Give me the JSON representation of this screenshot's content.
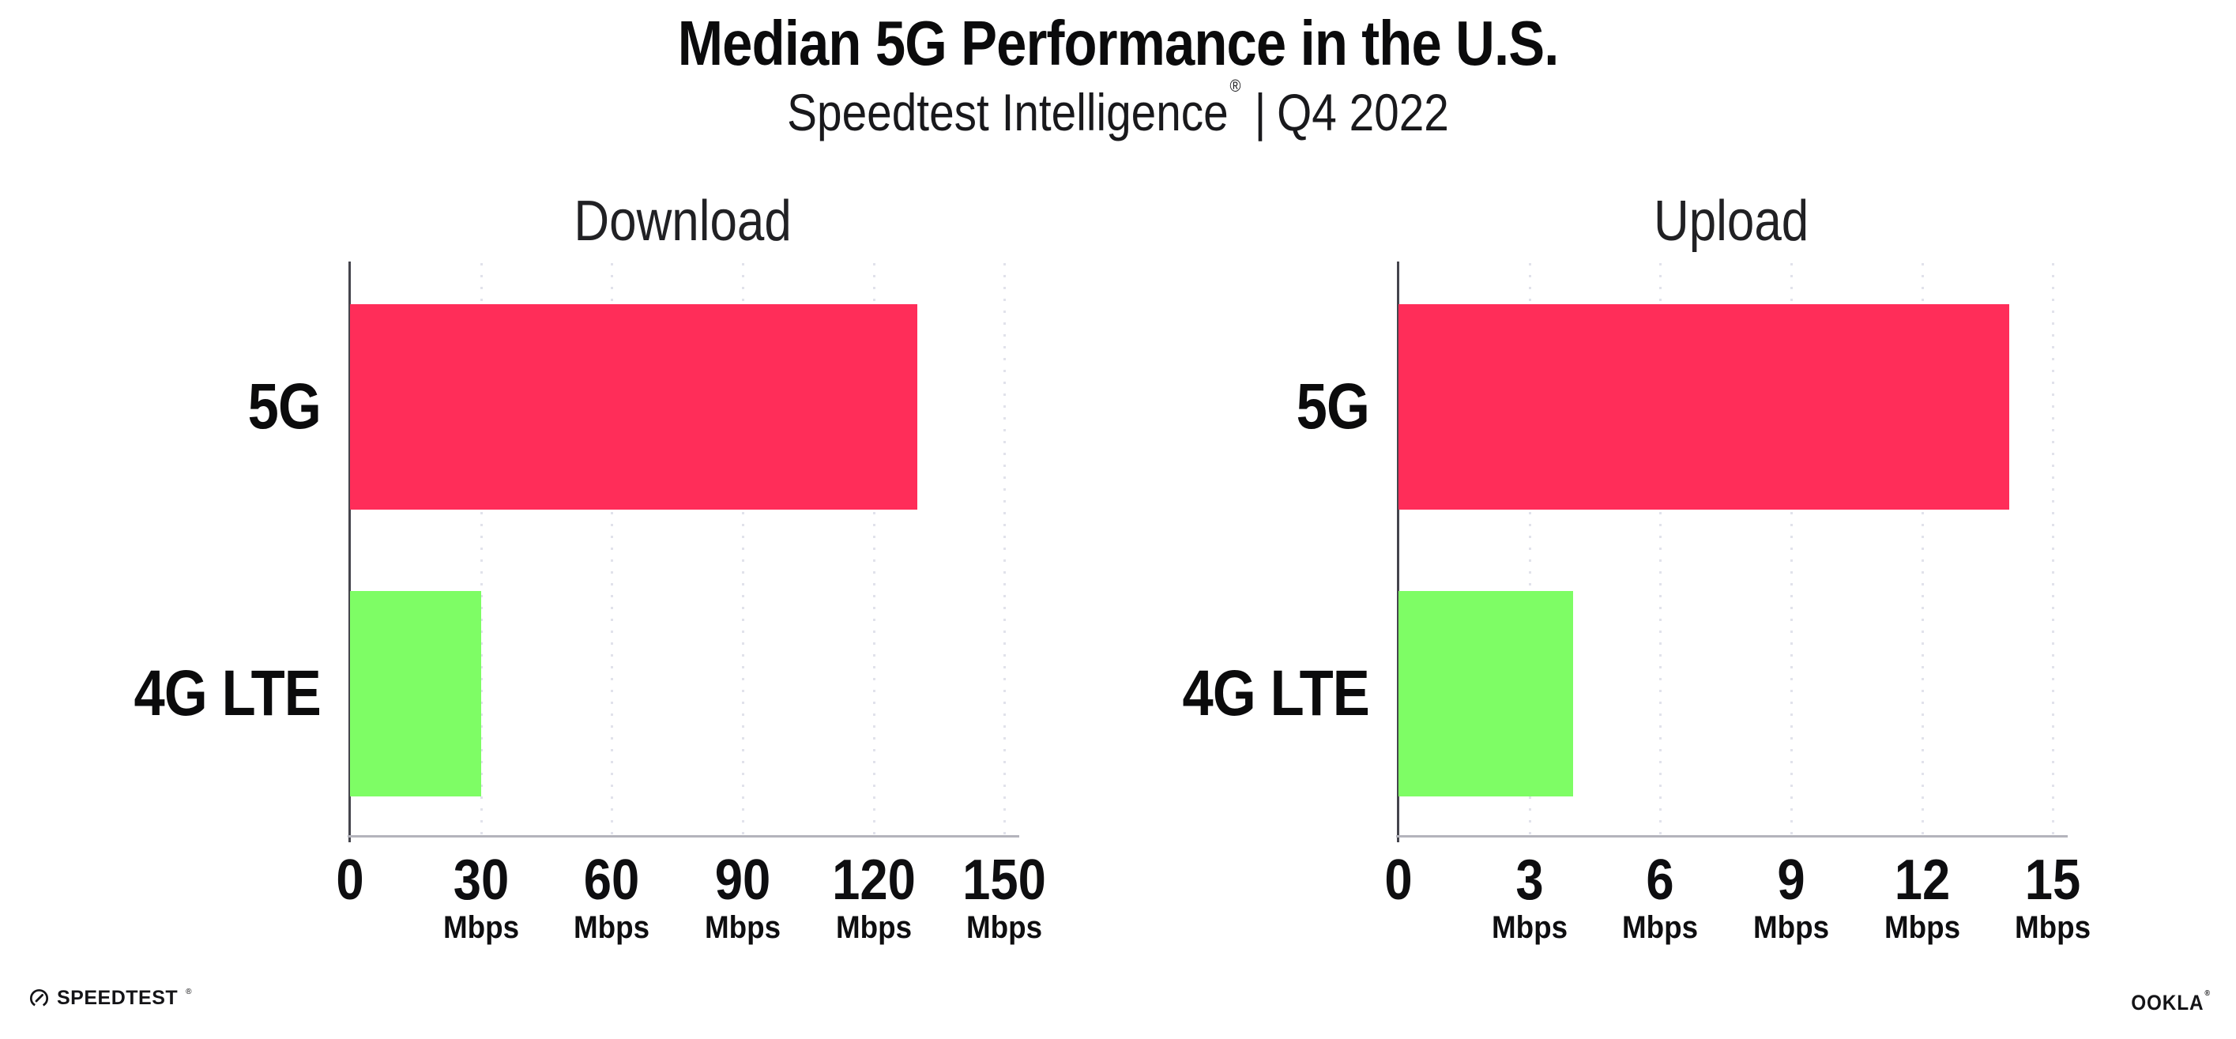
{
  "header": {
    "title": "Median 5G Performance in the U.S.",
    "subtitle_brand": "Speedtest Intelligence",
    "subtitle_registered": "®",
    "subtitle_separator": "|",
    "subtitle_period": "Q4 2022"
  },
  "colors": {
    "bar_5g": "#FF2D59",
    "bar_4g_lte": "#7EFD65",
    "gridline": "#E1E2EB",
    "y_axis_spine": "#45454D",
    "x_axis_line": "#B4B4BC",
    "text": "#0D0D0F",
    "background": "#FFFFFF"
  },
  "chart_data": [
    {
      "type": "bar",
      "orientation": "horizontal",
      "title": "Download",
      "categories": [
        "5G",
        "4G LTE"
      ],
      "values": [
        130,
        30
      ],
      "unit": "Mbps",
      "xlim": [
        0,
        152.5
      ],
      "xticks": [
        0,
        30,
        60,
        90,
        120,
        150
      ],
      "grid": "vertical-dotted",
      "legend": "none",
      "bar_colors": [
        "#FF2D59",
        "#7EFD65"
      ]
    },
    {
      "type": "bar",
      "orientation": "horizontal",
      "title": "Upload",
      "categories": [
        "5G",
        "4G LTE"
      ],
      "values": [
        14,
        4
      ],
      "unit": "Mbps",
      "xlim": [
        0,
        15.25
      ],
      "xticks": [
        0,
        3,
        6,
        9,
        12,
        15
      ],
      "grid": "vertical-dotted",
      "legend": "none",
      "bar_colors": [
        "#FF2D59",
        "#7EFD65"
      ]
    }
  ],
  "footer": {
    "speedtest_label": "SPEEDTEST",
    "speedtest_mark": "®",
    "ookla_label": "OOKLA",
    "ookla_mark": "®"
  }
}
